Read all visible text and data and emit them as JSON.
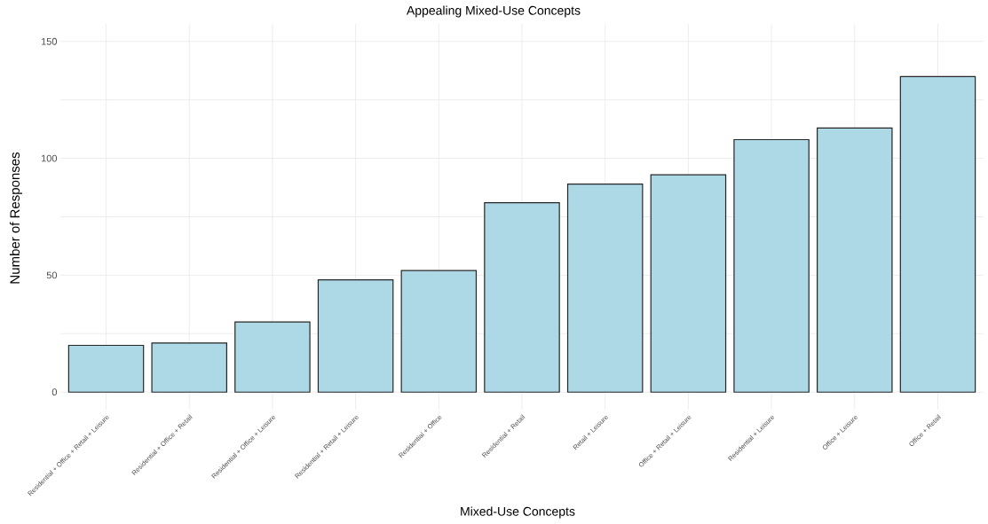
{
  "chart_data": {
    "type": "bar",
    "title": "Appealing Mixed-Use Concepts",
    "xlabel": "Mixed-Use Concepts",
    "ylabel": "Number of Responses",
    "categories": [
      "Residential + Office + Retail + Leisure",
      "Residential + Office + Retail",
      "Residential + Office + Leisure",
      "Residential + Retail + Leisure",
      "Residential + Office",
      "Residential + Retail",
      "Retail + Leisure",
      "Office + Retail + Leisure",
      "Residential + Leisure",
      "Office + Leisure",
      "Office + Retail"
    ],
    "values": [
      20,
      21,
      30,
      48,
      52,
      81,
      89,
      93,
      108,
      113,
      135
    ],
    "color": "#add8e6",
    "ylim": [
      -7.5,
      157.5
    ],
    "yticks": [
      0,
      {
        "value": 25,
        "label": null
      },
      50,
      {
        "value": 75,
        "label": null
      },
      100,
      {
        "value": 125,
        "label": null
      },
      150
    ],
    "grid": true
  }
}
